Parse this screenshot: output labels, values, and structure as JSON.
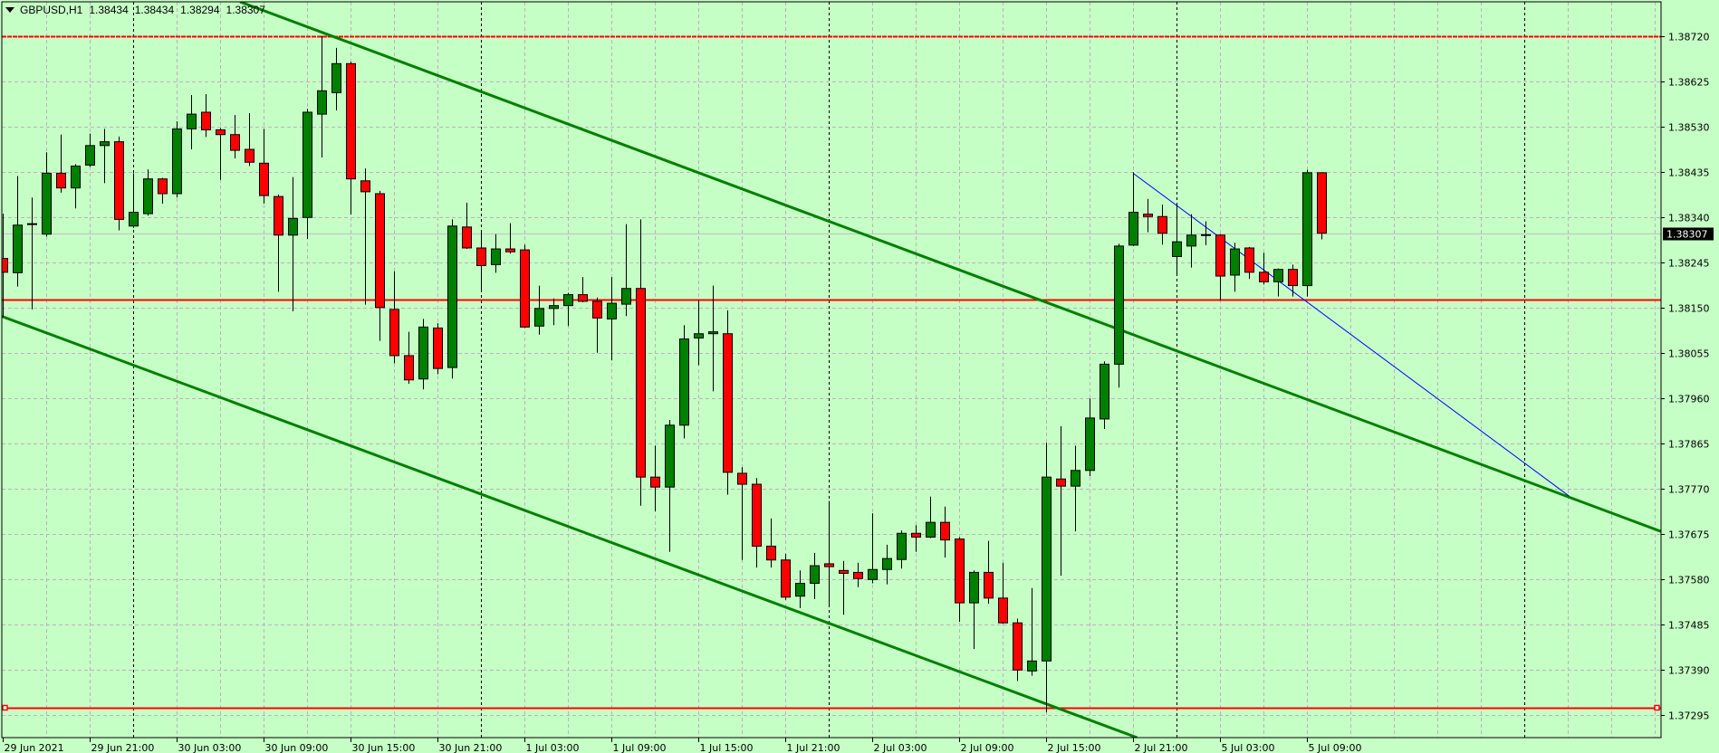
{
  "header": {
    "symbol": "GBPUSD,H1",
    "open": "1.38434",
    "high": "1.38434",
    "low": "1.38294",
    "close": "1.38307",
    "menu_icon": "triangle-down-icon"
  },
  "colors": {
    "background": "#c6ffc6",
    "bull": "#008000",
    "bear": "#ff0000",
    "grid": "#c0b0c0",
    "channel": "#008000",
    "level": "#ff0000",
    "trendline": "#0000ff",
    "bid_line": "#c0c0c0"
  },
  "chart_data": {
    "type": "candlestick",
    "symbol": "GBPUSD",
    "timeframe": "H1",
    "y_range": [
      1.37295,
      1.3872
    ],
    "y_ticks": [
      "1.38720",
      "1.38625",
      "1.38530",
      "1.38435",
      "1.38340",
      "1.38245",
      "1.38150",
      "1.38055",
      "1.37960",
      "1.37865",
      "1.37770",
      "1.37675",
      "1.37580",
      "1.37485",
      "1.37390",
      "1.37295"
    ],
    "x_ticks": [
      "29 Jun 2021",
      "29 Jun 21:00",
      "30 Jun 03:00",
      "30 Jun 09:00",
      "30 Jun 15:00",
      "30 Jun 21:00",
      "1 Jul 03:00",
      "1 Jul 09:00",
      "1 Jul 15:00",
      "1 Jul 21:00",
      "2 Jul 03:00",
      "2 Jul 09:00",
      "2 Jul 15:00",
      "2 Jul 21:00",
      "5 Jul 03:00",
      "5 Jul 09:00"
    ],
    "grid": true,
    "current_price": "1.38307",
    "candles_ohlc": [
      [
        1.38254,
        1.38348,
        1.38131,
        1.38225
      ],
      [
        1.38224,
        1.38427,
        1.38195,
        1.38324
      ],
      [
        1.38326,
        1.38382,
        1.38147,
        1.38327
      ],
      [
        1.38305,
        1.38477,
        1.383,
        1.38433
      ],
      [
        1.38433,
        1.38514,
        1.38392,
        1.38402
      ],
      [
        1.38402,
        1.38452,
        1.38359,
        1.38448
      ],
      [
        1.3845,
        1.38516,
        1.38446,
        1.38491
      ],
      [
        1.38491,
        1.38526,
        1.38412,
        1.38499
      ],
      [
        1.38499,
        1.3851,
        1.38313,
        1.38336
      ],
      [
        1.38322,
        1.38433,
        1.38318,
        1.38351
      ],
      [
        1.38348,
        1.38441,
        1.38344,
        1.38421
      ],
      [
        1.38421,
        1.38423,
        1.38369,
        1.3839
      ],
      [
        1.3839,
        1.38542,
        1.38382,
        1.38526
      ],
      [
        1.38526,
        1.38597,
        1.38483,
        1.38557
      ],
      [
        1.38561,
        1.38599,
        1.38509,
        1.38524
      ],
      [
        1.38524,
        1.38528,
        1.38419,
        1.38514
      ],
      [
        1.38514,
        1.38555,
        1.38464,
        1.38481
      ],
      [
        1.38483,
        1.38559,
        1.38448,
        1.38456
      ],
      [
        1.38454,
        1.38526,
        1.38369,
        1.38386
      ],
      [
        1.38384,
        1.38388,
        1.38184,
        1.38303
      ],
      [
        1.38303,
        1.38425,
        1.38143,
        1.38338
      ],
      [
        1.3834,
        1.38568,
        1.38295,
        1.38561
      ],
      [
        1.38557,
        1.38721,
        1.38466,
        1.38606
      ],
      [
        1.38602,
        1.38696,
        1.38565,
        1.38663
      ],
      [
        1.38663,
        1.38667,
        1.38346,
        1.38421
      ],
      [
        1.38417,
        1.38443,
        1.38157,
        1.38394
      ],
      [
        1.3839,
        1.38396,
        1.38081,
        1.38151
      ],
      [
        1.38147,
        1.38227,
        1.38034,
        1.3805
      ],
      [
        1.3805,
        1.381,
        1.37991,
        1.37999
      ],
      [
        1.38001,
        1.38127,
        1.37979,
        1.3811
      ],
      [
        1.38108,
        1.38118,
        1.38011,
        1.38023
      ],
      [
        1.38025,
        1.38336,
        1.38002,
        1.38322
      ],
      [
        1.3832,
        1.38371,
        1.38274,
        1.38276
      ],
      [
        1.38276,
        1.38313,
        1.38184,
        1.38239
      ],
      [
        1.38241,
        1.38305,
        1.38224,
        1.38274
      ],
      [
        1.38274,
        1.38328,
        1.38264,
        1.38268
      ],
      [
        1.38272,
        1.38283,
        1.38108,
        1.3811
      ],
      [
        1.38112,
        1.38197,
        1.38094,
        1.38149
      ],
      [
        1.38149,
        1.3817,
        1.38114,
        1.38155
      ],
      [
        1.38155,
        1.38182,
        1.38112,
        1.38178
      ],
      [
        1.38178,
        1.38215,
        1.38162,
        1.38164
      ],
      [
        1.38164,
        1.38172,
        1.38056,
        1.38129
      ],
      [
        1.38127,
        1.38215,
        1.3804,
        1.3816
      ],
      [
        1.38158,
        1.38326,
        1.38133,
        1.38191
      ],
      [
        1.38191,
        1.38336,
        1.37735,
        1.37795
      ],
      [
        1.37795,
        1.37861,
        1.37723,
        1.37774
      ],
      [
        1.37774,
        1.37915,
        1.37638,
        1.37904
      ],
      [
        1.37904,
        1.38114,
        1.37876,
        1.38085
      ],
      [
        1.38087,
        1.38166,
        1.3803,
        1.38096
      ],
      [
        1.38096,
        1.38197,
        1.37975,
        1.381
      ],
      [
        1.38096,
        1.38145,
        1.37758,
        1.37805
      ],
      [
        1.37803,
        1.37816,
        1.37621,
        1.3778
      ],
      [
        1.3778,
        1.37793,
        1.37605,
        1.3765
      ],
      [
        1.3765,
        1.37708,
        1.37605,
        1.37621
      ],
      [
        1.37621,
        1.37634,
        1.37537,
        1.37543
      ],
      [
        1.37545,
        1.37599,
        1.3752,
        1.37572
      ],
      [
        1.37572,
        1.37636,
        1.37539,
        1.37609
      ],
      [
        1.37613,
        1.37745,
        1.37522,
        1.37607
      ],
      [
        1.37599,
        1.37619,
        1.37506,
        1.37593
      ],
      [
        1.37595,
        1.37615,
        1.37564,
        1.37582
      ],
      [
        1.3758,
        1.37719,
        1.37572,
        1.37601
      ],
      [
        1.37601,
        1.37653,
        1.3757,
        1.37624
      ],
      [
        1.37622,
        1.37683,
        1.37603,
        1.37677
      ],
      [
        1.37677,
        1.37694,
        1.37638,
        1.37669
      ],
      [
        1.37669,
        1.37754,
        1.37667,
        1.377
      ],
      [
        1.377,
        1.37733,
        1.37626,
        1.37663
      ],
      [
        1.37665,
        1.37669,
        1.37491,
        1.37531
      ],
      [
        1.37531,
        1.37599,
        1.37434,
        1.37595
      ],
      [
        1.37595,
        1.37661,
        1.37529,
        1.37541
      ],
      [
        1.37541,
        1.37615,
        1.37487,
        1.37489
      ],
      [
        1.37489,
        1.37498,
        1.37367,
        1.3739
      ],
      [
        1.37388,
        1.37562,
        1.37378,
        1.37409
      ],
      [
        1.37409,
        1.37867,
        1.37301,
        1.37795
      ],
      [
        1.37791,
        1.37902,
        1.37588,
        1.37776
      ],
      [
        1.37776,
        1.37861,
        1.37681,
        1.37809
      ],
      [
        1.37809,
        1.3796,
        1.37797,
        1.37919
      ],
      [
        1.37917,
        1.38038,
        1.37896,
        1.38032
      ],
      [
        1.38032,
        1.38285,
        1.37983,
        1.3828
      ],
      [
        1.38282,
        1.38435,
        1.3828,
        1.38351
      ],
      [
        1.38347,
        1.38379,
        1.38309,
        1.38342
      ],
      [
        1.38342,
        1.38367,
        1.38283,
        1.38307
      ],
      [
        1.38258,
        1.38371,
        1.38221,
        1.38289
      ],
      [
        1.3828,
        1.38347,
        1.38235,
        1.38303
      ],
      [
        1.38303,
        1.38332,
        1.38282,
        1.38304
      ],
      [
        1.38303,
        1.38305,
        1.38166,
        1.38217
      ],
      [
        1.38219,
        1.38287,
        1.38184,
        1.38274
      ],
      [
        1.38276,
        1.38278,
        1.38211,
        1.38225
      ],
      [
        1.38225,
        1.38266,
        1.38199,
        1.38205
      ],
      [
        1.38205,
        1.38233,
        1.38174,
        1.38231
      ],
      [
        1.38231,
        1.38241,
        1.38174,
        1.38197
      ],
      [
        1.38197,
        1.3844,
        1.38174,
        1.38434
      ],
      [
        1.38434,
        1.38434,
        1.38294,
        1.38307
      ]
    ],
    "horizontal_levels": [
      {
        "price": 1.3872,
        "style": "dashed"
      },
      {
        "price": 1.38168,
        "style": "solid"
      },
      {
        "price": 1.3731,
        "style": "solid",
        "selected": true
      }
    ],
    "trendlines": [
      {
        "name": "channel-upper",
        "from": {
          "bar": 22,
          "price": 1.38729
        },
        "to": {
          "bar": 90,
          "price": 1.37958
        },
        "extend": true
      },
      {
        "name": "channel-lower",
        "from": {
          "bar": 49.5,
          "price": 1.37573
        },
        "to": {
          "bar": 72,
          "price": 1.37319
        },
        "extend": true
      },
      {
        "name": "blue-trendline",
        "from": {
          "bar": 78,
          "price": 1.38433
        },
        "to": {
          "bar": 108.1,
          "price": 1.37755
        },
        "extend": false
      }
    ]
  }
}
